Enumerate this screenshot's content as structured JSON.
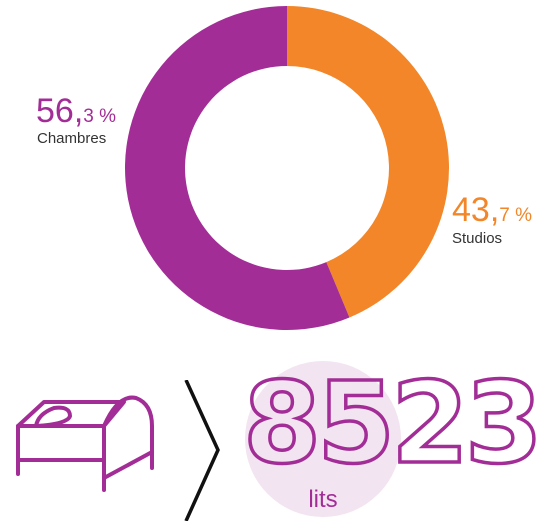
{
  "colors": {
    "studios": "#F28628",
    "chambres": "#A32D97",
    "circle": "#F2E4F0",
    "icon": "#A32D97",
    "chevron": "#111111"
  },
  "chart_data": {
    "type": "pie",
    "donut": true,
    "title": "",
    "slices": [
      {
        "label": "Studios",
        "value": 43.7,
        "color": "#F28628",
        "pct_int": "43,",
        "pct_dec": "7 %"
      },
      {
        "label": "Chambres",
        "value": 56.3,
        "color": "#A32D97",
        "pct_int": "56,",
        "pct_dec": "3 %"
      }
    ]
  },
  "summary": {
    "number": "8523",
    "unit": "lits"
  },
  "icons": {
    "bed": "bed-icon",
    "chevron": "chevron-right-icon"
  }
}
